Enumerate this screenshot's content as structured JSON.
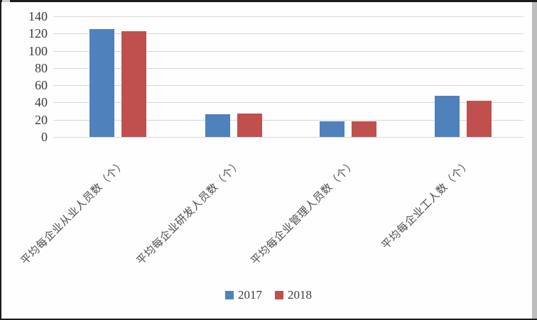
{
  "frame": {
    "edge_color": "#1b1b1b",
    "right_strip_color": "#bdbdbd",
    "background": "#fefefe"
  },
  "chart_data": {
    "type": "bar",
    "title": "",
    "xlabel": "",
    "ylabel": "",
    "categories": [
      "平均每企业从业人员数（个）",
      "平均每企业研发人员数（个）",
      "平均每企业管理人员数（个）",
      "平均每企业工人数（个）"
    ],
    "series": [
      {
        "name": "2017",
        "color": "#4F81BD",
        "values": [
          125,
          26,
          18,
          48
        ]
      },
      {
        "name": "2018",
        "color": "#C0504D",
        "values": [
          123,
          27,
          18,
          42
        ]
      }
    ],
    "ylim": [
      0,
      140
    ],
    "yticks": [
      0,
      20,
      40,
      60,
      80,
      100,
      120,
      140
    ],
    "grid": true,
    "gridline_color": "#d8d8d8",
    "tick_color": "#3a3a3a",
    "category_label_rotation_deg": 45,
    "legend_position": "bottom"
  }
}
